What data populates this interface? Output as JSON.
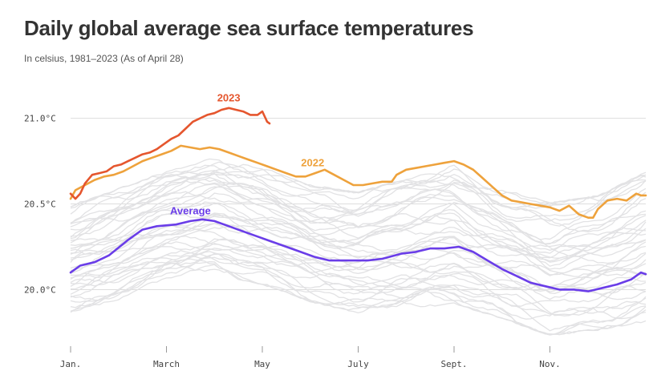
{
  "title": "Daily global average sea surface temperatures",
  "subtitle": "In celsius, 1981–2023 (As of April 28)",
  "colors": {
    "y2023": "#e5562e",
    "y2022": "#eea23c",
    "average": "#6a3de8",
    "history": "#e2e2e4",
    "grid": "#dddddd"
  },
  "chart_data": {
    "type": "line",
    "title": "Daily global average sea surface temperatures",
    "subtitle": "In celsius, 1981–2023 (As of April 28)",
    "xlabel": "",
    "ylabel": "",
    "x_unit": "month",
    "xlim": [
      0,
      12
    ],
    "ylim": [
      19.67,
      21.12
    ],
    "grid": "horizontal",
    "y_ticks": [
      {
        "value": 21.0,
        "label": "21.0°C"
      },
      {
        "value": 20.5,
        "label": "20.5°C"
      },
      {
        "value": 20.0,
        "label": "20.0°C"
      }
    ],
    "x_ticks": [
      {
        "value": 0,
        "label": "Jan."
      },
      {
        "value": 2,
        "label": "March"
      },
      {
        "value": 4,
        "label": "May"
      },
      {
        "value": 6,
        "label": "July"
      },
      {
        "value": 8,
        "label": "Sept."
      },
      {
        "value": 10,
        "label": "Nov."
      }
    ],
    "series": [
      {
        "name": "Average",
        "color": "#6a3de8",
        "label_at": {
          "x": 2.5,
          "y": 20.44
        },
        "points": [
          [
            0,
            20.1
          ],
          [
            0.2,
            20.14
          ],
          [
            0.5,
            20.16
          ],
          [
            0.8,
            20.2
          ],
          [
            1.2,
            20.29
          ],
          [
            1.5,
            20.35
          ],
          [
            1.8,
            20.37
          ],
          [
            2.2,
            20.38
          ],
          [
            2.5,
            20.4
          ],
          [
            2.75,
            20.41
          ],
          [
            3.0,
            20.4
          ],
          [
            3.3,
            20.37
          ],
          [
            3.6,
            20.34
          ],
          [
            3.9,
            20.31
          ],
          [
            4.2,
            20.28
          ],
          [
            4.5,
            20.25
          ],
          [
            4.8,
            20.22
          ],
          [
            5.1,
            20.19
          ],
          [
            5.4,
            20.17
          ],
          [
            5.8,
            20.17
          ],
          [
            6.2,
            20.17
          ],
          [
            6.5,
            20.18
          ],
          [
            6.9,
            20.21
          ],
          [
            7.2,
            20.22
          ],
          [
            7.5,
            20.24
          ],
          [
            7.8,
            20.24
          ],
          [
            8.1,
            20.25
          ],
          [
            8.4,
            20.22
          ],
          [
            8.7,
            20.17
          ],
          [
            9.0,
            20.12
          ],
          [
            9.3,
            20.08
          ],
          [
            9.6,
            20.04
          ],
          [
            9.9,
            20.02
          ],
          [
            10.2,
            20.0
          ],
          [
            10.5,
            20.0
          ],
          [
            10.8,
            19.99
          ],
          [
            11.1,
            20.01
          ],
          [
            11.4,
            20.03
          ],
          [
            11.7,
            20.06
          ],
          [
            11.9,
            20.1
          ],
          [
            12.0,
            20.09
          ]
        ]
      },
      {
        "name": "2022",
        "color": "#eea23c",
        "label_at": {
          "x": 5.05,
          "y": 20.72
        },
        "points": [
          [
            0,
            20.53
          ],
          [
            0.1,
            20.58
          ],
          [
            0.3,
            20.61
          ],
          [
            0.5,
            20.64
          ],
          [
            0.7,
            20.66
          ],
          [
            0.9,
            20.67
          ],
          [
            1.1,
            20.69
          ],
          [
            1.3,
            20.72
          ],
          [
            1.5,
            20.75
          ],
          [
            1.7,
            20.77
          ],
          [
            1.9,
            20.79
          ],
          [
            2.1,
            20.81
          ],
          [
            2.3,
            20.84
          ],
          [
            2.5,
            20.83
          ],
          [
            2.7,
            20.82
          ],
          [
            2.9,
            20.83
          ],
          [
            3.1,
            20.82
          ],
          [
            3.3,
            20.8
          ],
          [
            3.5,
            20.78
          ],
          [
            3.7,
            20.76
          ],
          [
            3.9,
            20.74
          ],
          [
            4.1,
            20.72
          ],
          [
            4.3,
            20.7
          ],
          [
            4.5,
            20.68
          ],
          [
            4.7,
            20.66
          ],
          [
            4.9,
            20.66
          ],
          [
            5.1,
            20.68
          ],
          [
            5.3,
            20.7
          ],
          [
            5.5,
            20.67
          ],
          [
            5.7,
            20.64
          ],
          [
            5.9,
            20.61
          ],
          [
            6.1,
            20.61
          ],
          [
            6.3,
            20.62
          ],
          [
            6.5,
            20.63
          ],
          [
            6.7,
            20.63
          ],
          [
            6.8,
            20.67
          ],
          [
            7.0,
            20.7
          ],
          [
            7.2,
            20.71
          ],
          [
            7.4,
            20.72
          ],
          [
            7.6,
            20.73
          ],
          [
            7.8,
            20.74
          ],
          [
            8.0,
            20.75
          ],
          [
            8.2,
            20.73
          ],
          [
            8.4,
            20.7
          ],
          [
            8.6,
            20.65
          ],
          [
            8.8,
            20.6
          ],
          [
            9.0,
            20.55
          ],
          [
            9.2,
            20.52
          ],
          [
            9.4,
            20.51
          ],
          [
            9.6,
            20.5
          ],
          [
            9.8,
            20.49
          ],
          [
            10.0,
            20.48
          ],
          [
            10.2,
            20.46
          ],
          [
            10.4,
            20.49
          ],
          [
            10.6,
            20.44
          ],
          [
            10.8,
            20.42
          ],
          [
            10.9,
            20.42
          ],
          [
            11.0,
            20.47
          ],
          [
            11.2,
            20.52
          ],
          [
            11.4,
            20.53
          ],
          [
            11.6,
            20.52
          ],
          [
            11.8,
            20.56
          ],
          [
            11.9,
            20.55
          ],
          [
            12.0,
            20.55
          ]
        ]
      },
      {
        "name": "2023",
        "color": "#e5562e",
        "label_at": {
          "x": 3.3,
          "y": 21.1
        },
        "points": [
          [
            0,
            20.56
          ],
          [
            0.1,
            20.53
          ],
          [
            0.2,
            20.56
          ],
          [
            0.3,
            20.62
          ],
          [
            0.45,
            20.67
          ],
          [
            0.6,
            20.68
          ],
          [
            0.75,
            20.69
          ],
          [
            0.9,
            20.72
          ],
          [
            1.05,
            20.73
          ],
          [
            1.2,
            20.75
          ],
          [
            1.35,
            20.77
          ],
          [
            1.5,
            20.79
          ],
          [
            1.65,
            20.8
          ],
          [
            1.8,
            20.82
          ],
          [
            1.95,
            20.85
          ],
          [
            2.1,
            20.88
          ],
          [
            2.25,
            20.9
          ],
          [
            2.4,
            20.94
          ],
          [
            2.55,
            20.98
          ],
          [
            2.7,
            21.0
          ],
          [
            2.85,
            21.02
          ],
          [
            3.0,
            21.03
          ],
          [
            3.15,
            21.05
          ],
          [
            3.3,
            21.06
          ],
          [
            3.45,
            21.05
          ],
          [
            3.6,
            21.04
          ],
          [
            3.75,
            21.02
          ],
          [
            3.9,
            21.02
          ],
          [
            4.0,
            21.04
          ],
          [
            4.05,
            21.01
          ],
          [
            4.1,
            20.98
          ],
          [
            4.15,
            20.97
          ]
        ]
      }
    ],
    "history_band": {
      "name": "1981–2021",
      "series_count": 41,
      "x": [
        0,
        1,
        2,
        3,
        4,
        5,
        6,
        7,
        8,
        9,
        10,
        11,
        12
      ],
      "min": [
        19.86,
        19.93,
        20.05,
        20.08,
        20.02,
        19.92,
        19.85,
        19.88,
        19.9,
        19.82,
        19.72,
        19.75,
        19.8
      ],
      "max": [
        20.5,
        20.6,
        20.7,
        20.78,
        20.73,
        20.62,
        20.58,
        20.66,
        20.74,
        20.6,
        20.52,
        20.56,
        20.7
      ]
    }
  }
}
